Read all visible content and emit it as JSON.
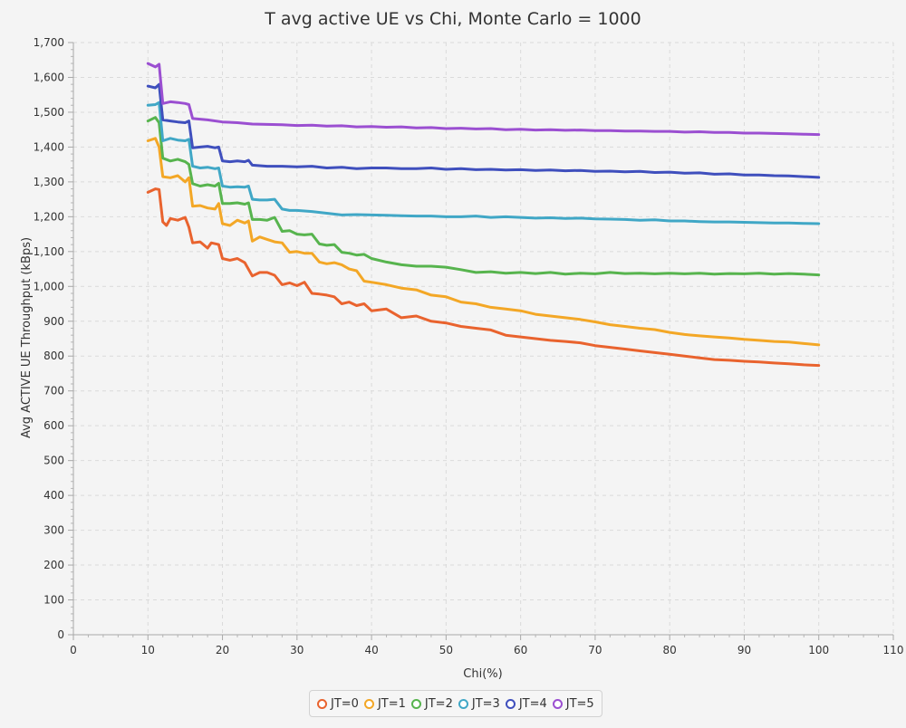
{
  "chart_data": {
    "type": "line",
    "title": "T avg active UE vs Chi, Monte Carlo = 1000",
    "xlabel": "Chi(%)",
    "ylabel": "Avg ACTIVE UE Throughput (kBps)",
    "xlim": [
      0,
      110
    ],
    "ylim": [
      0,
      1700
    ],
    "xticks": [
      0,
      10,
      20,
      30,
      40,
      50,
      60,
      70,
      80,
      90,
      100,
      110
    ],
    "xtick_labels": [
      "0",
      "10",
      "20",
      "30",
      "40",
      "50",
      "60",
      "70",
      "80",
      "90",
      "100",
      "110"
    ],
    "yticks": [
      0,
      100,
      200,
      300,
      400,
      500,
      600,
      700,
      800,
      900,
      1000,
      1100,
      1200,
      1300,
      1400,
      1500,
      1600,
      1700
    ],
    "ytick_labels": [
      "0",
      "100",
      "200",
      "300",
      "400",
      "500",
      "600",
      "700",
      "800",
      "900",
      "1,000",
      "1,100",
      "1,200",
      "1,300",
      "1,400",
      "1,500",
      "1,600",
      "1,700"
    ],
    "grid": true,
    "legend": "bottom-center",
    "series": [
      {
        "name": "JT=0",
        "color": "#e9632e",
        "x": [
          10,
          11,
          11.5,
          12,
          12.5,
          13,
          14,
          15,
          15.5,
          16,
          17,
          18,
          18.5,
          19.5,
          20,
          21,
          22,
          23,
          24,
          25,
          26,
          27,
          28,
          29,
          30,
          31,
          32,
          33,
          34,
          35,
          36,
          37,
          38,
          39,
          40,
          42,
          44,
          46,
          48,
          50,
          52,
          54,
          56,
          58,
          60,
          62,
          64,
          66,
          68,
          70,
          72,
          74,
          76,
          78,
          80,
          82,
          84,
          86,
          88,
          90,
          92,
          94,
          96,
          98,
          100
        ],
        "y": [
          1270,
          1280,
          1278,
          1185,
          1175,
          1195,
          1190,
          1198,
          1170,
          1125,
          1128,
          1110,
          1125,
          1120,
          1080,
          1075,
          1080,
          1068,
          1030,
          1040,
          1040,
          1032,
          1005,
          1010,
          1002,
          1012,
          980,
          978,
          975,
          970,
          950,
          955,
          945,
          950,
          930,
          935,
          910,
          915,
          900,
          895,
          885,
          880,
          875,
          860,
          855,
          850,
          845,
          842,
          838,
          830,
          825,
          820,
          815,
          810,
          805,
          800,
          795,
          790,
          788,
          785,
          783,
          780,
          778,
          775,
          773
        ]
      },
      {
        "name": "JT=1",
        "color": "#f3a726",
        "x": [
          10,
          11,
          11.5,
          12,
          13,
          14,
          15,
          15.5,
          16,
          17,
          18,
          19,
          19.5,
          20,
          21,
          22,
          23,
          23.5,
          24,
          25,
          26,
          27,
          28,
          29,
          30,
          31,
          32,
          33,
          34,
          35,
          36,
          37,
          38,
          39,
          40,
          42,
          44,
          46,
          48,
          50,
          52,
          54,
          56,
          58,
          60,
          62,
          64,
          66,
          68,
          70,
          72,
          74,
          76,
          78,
          80,
          82,
          84,
          86,
          88,
          90,
          92,
          94,
          96,
          98,
          100
        ],
        "y": [
          1418,
          1425,
          1400,
          1315,
          1312,
          1318,
          1300,
          1312,
          1230,
          1232,
          1225,
          1222,
          1238,
          1180,
          1175,
          1190,
          1182,
          1188,
          1130,
          1142,
          1135,
          1128,
          1125,
          1098,
          1100,
          1095,
          1095,
          1070,
          1065,
          1068,
          1062,
          1050,
          1045,
          1015,
          1012,
          1005,
          995,
          990,
          975,
          970,
          955,
          950,
          940,
          935,
          930,
          920,
          915,
          910,
          905,
          898,
          890,
          885,
          880,
          876,
          868,
          862,
          858,
          855,
          852,
          848,
          845,
          842,
          840,
          836,
          832
        ]
      },
      {
        "name": "JT=2",
        "color": "#57b44e",
        "x": [
          10,
          11,
          11.5,
          12,
          13,
          14,
          15,
          15.5,
          16,
          17,
          18,
          19,
          19.5,
          20,
          21,
          22,
          23,
          23.5,
          24,
          25,
          26,
          27,
          28,
          29,
          30,
          31,
          32,
          33,
          34,
          35,
          36,
          37,
          38,
          39,
          40,
          42,
          44,
          46,
          48,
          50,
          52,
          54,
          56,
          58,
          60,
          62,
          64,
          66,
          68,
          70,
          72,
          74,
          76,
          78,
          80,
          82,
          84,
          86,
          88,
          90,
          92,
          94,
          96,
          98,
          100
        ],
        "y": [
          1475,
          1485,
          1470,
          1368,
          1360,
          1365,
          1358,
          1350,
          1295,
          1288,
          1292,
          1288,
          1296,
          1238,
          1238,
          1240,
          1236,
          1240,
          1192,
          1192,
          1190,
          1198,
          1158,
          1160,
          1150,
          1148,
          1150,
          1122,
          1118,
          1120,
          1098,
          1095,
          1090,
          1092,
          1080,
          1070,
          1062,
          1058,
          1058,
          1055,
          1048,
          1040,
          1042,
          1038,
          1040,
          1037,
          1040,
          1035,
          1038,
          1036,
          1040,
          1037,
          1038,
          1036,
          1038,
          1036,
          1038,
          1035,
          1037,
          1036,
          1038,
          1035,
          1037,
          1035,
          1033
        ]
      },
      {
        "name": "JT=3",
        "color": "#40a7c6",
        "x": [
          10,
          11,
          11.5,
          12,
          13,
          14,
          15,
          15.5,
          16,
          17,
          18,
          19,
          19.5,
          20,
          21,
          22,
          23,
          23.5,
          24,
          25,
          26,
          27,
          28,
          29,
          30,
          32,
          34,
          36,
          38,
          40,
          42,
          44,
          46,
          48,
          50,
          52,
          54,
          56,
          58,
          60,
          62,
          64,
          66,
          68,
          70,
          72,
          74,
          76,
          78,
          80,
          82,
          84,
          86,
          88,
          90,
          92,
          94,
          96,
          98,
          100
        ],
        "y": [
          1520,
          1522,
          1528,
          1418,
          1425,
          1420,
          1418,
          1422,
          1345,
          1340,
          1342,
          1338,
          1340,
          1288,
          1285,
          1286,
          1285,
          1288,
          1250,
          1248,
          1248,
          1250,
          1222,
          1218,
          1218,
          1215,
          1210,
          1205,
          1206,
          1205,
          1204,
          1203,
          1202,
          1202,
          1200,
          1200,
          1202,
          1198,
          1200,
          1198,
          1196,
          1197,
          1195,
          1196,
          1194,
          1193,
          1192,
          1190,
          1191,
          1188,
          1188,
          1186,
          1185,
          1185,
          1184,
          1183,
          1182,
          1182,
          1181,
          1180
        ]
      },
      {
        "name": "JT=4",
        "color": "#3f4fbd",
        "x": [
          10,
          11,
          11.5,
          12,
          13,
          14,
          15,
          15.5,
          16,
          17,
          18,
          19,
          19.5,
          20,
          21,
          22,
          23,
          23.5,
          24,
          26,
          28,
          30,
          32,
          34,
          36,
          38,
          40,
          42,
          44,
          46,
          48,
          50,
          52,
          54,
          56,
          58,
          60,
          62,
          64,
          66,
          68,
          70,
          72,
          74,
          76,
          78,
          80,
          82,
          84,
          86,
          88,
          90,
          92,
          94,
          96,
          98,
          100
        ],
        "y": [
          1575,
          1570,
          1580,
          1478,
          1475,
          1472,
          1470,
          1475,
          1398,
          1400,
          1402,
          1398,
          1400,
          1360,
          1358,
          1360,
          1358,
          1362,
          1348,
          1345,
          1345,
          1343,
          1345,
          1340,
          1342,
          1338,
          1340,
          1340,
          1338,
          1338,
          1340,
          1336,
          1338,
          1335,
          1336,
          1334,
          1335,
          1333,
          1334,
          1332,
          1333,
          1330,
          1331,
          1329,
          1330,
          1327,
          1328,
          1325,
          1326,
          1322,
          1323,
          1320,
          1320,
          1318,
          1317,
          1315,
          1313
        ]
      },
      {
        "name": "JT=5",
        "color": "#9b4fd1",
        "x": [
          10,
          11,
          11.5,
          12,
          13,
          14,
          15,
          15.5,
          16,
          18,
          20,
          22,
          24,
          26,
          28,
          30,
          32,
          34,
          36,
          38,
          40,
          42,
          44,
          46,
          48,
          50,
          52,
          54,
          56,
          58,
          60,
          62,
          64,
          66,
          68,
          70,
          72,
          74,
          76,
          78,
          80,
          82,
          84,
          86,
          88,
          90,
          92,
          94,
          96,
          98,
          100
        ],
        "y": [
          1640,
          1630,
          1638,
          1525,
          1530,
          1528,
          1525,
          1522,
          1482,
          1478,
          1472,
          1470,
          1466,
          1465,
          1464,
          1462,
          1463,
          1460,
          1461,
          1458,
          1459,
          1457,
          1458,
          1455,
          1456,
          1453,
          1454,
          1452,
          1453,
          1450,
          1451,
          1449,
          1450,
          1448,
          1449,
          1447,
          1447,
          1446,
          1446,
          1445,
          1445,
          1443,
          1444,
          1442,
          1442,
          1440,
          1440,
          1439,
          1438,
          1437,
          1436
        ]
      }
    ]
  }
}
